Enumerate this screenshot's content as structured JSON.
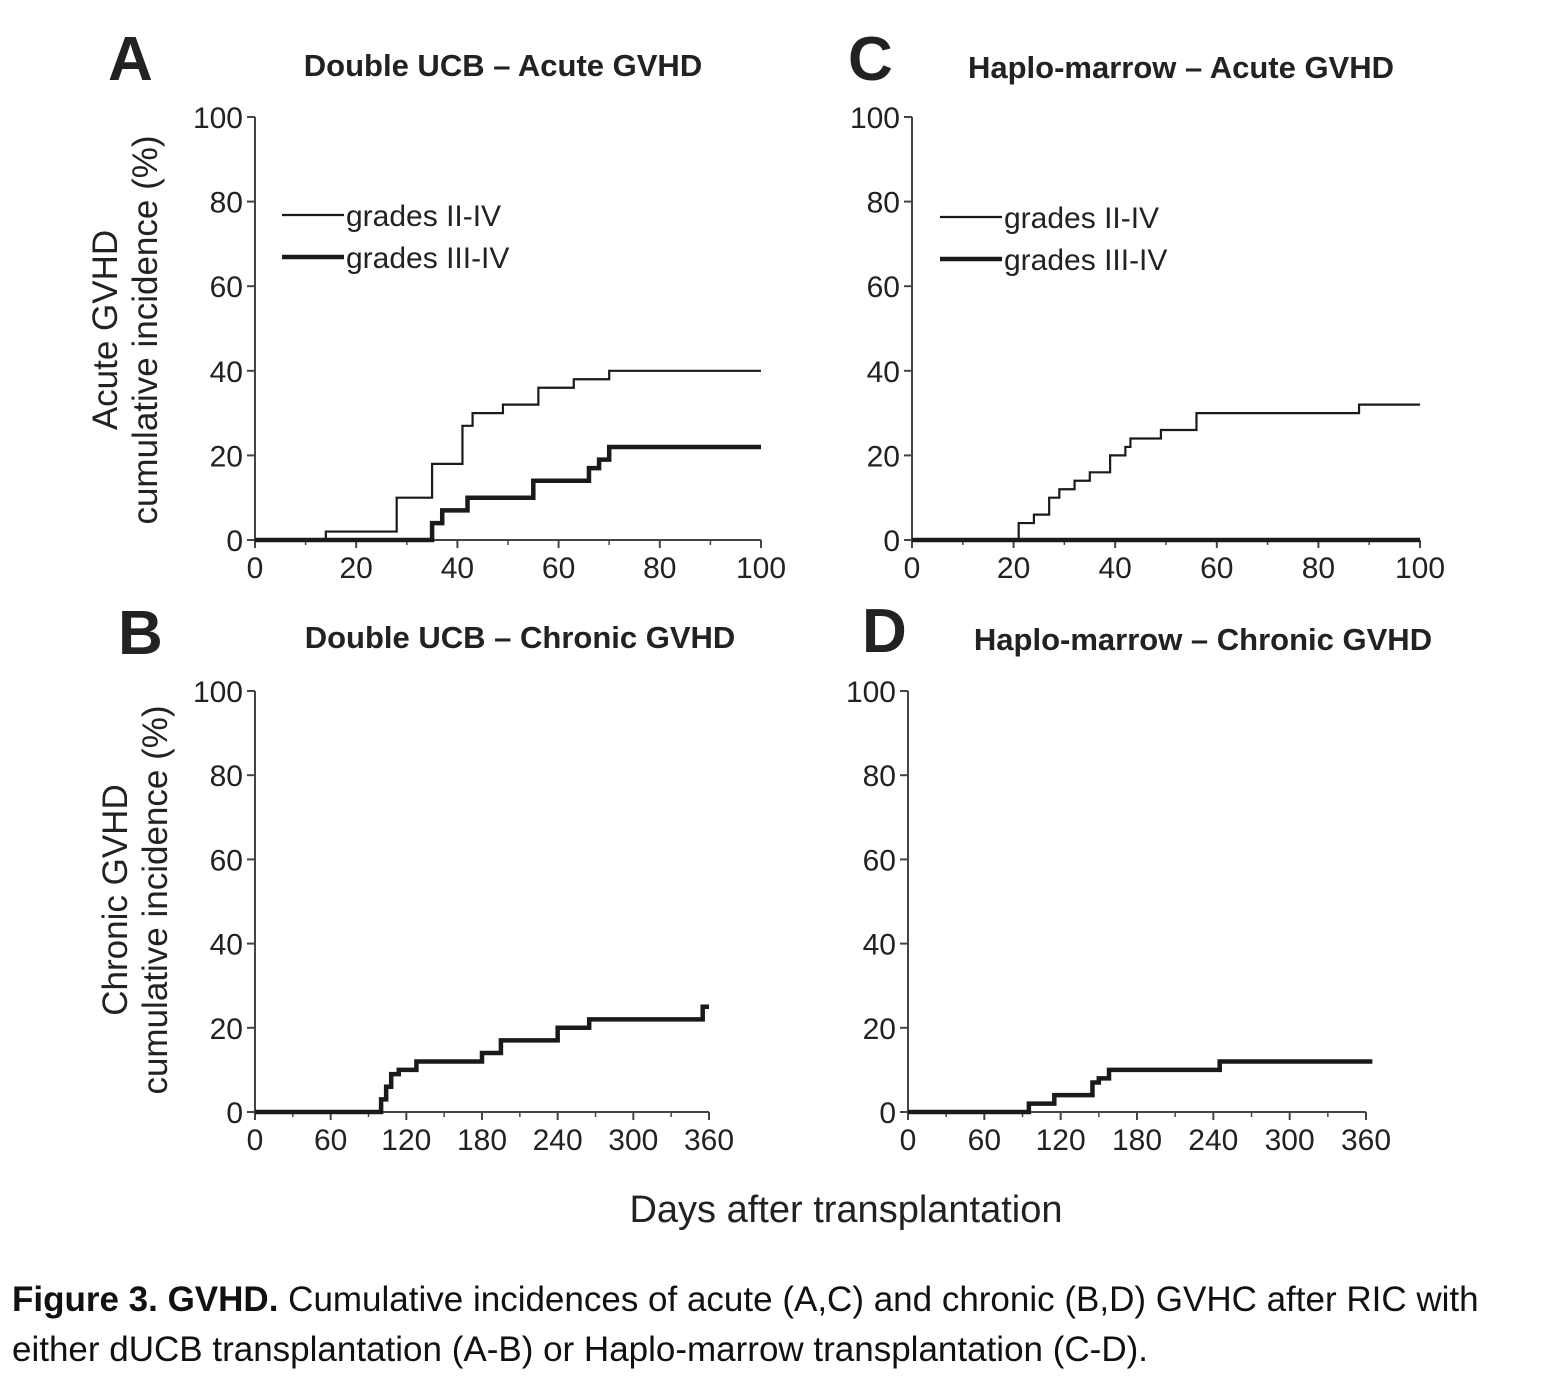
{
  "figure": {
    "ylabel_acute": [
      "Acute GVHD",
      "cumulative incidence (%)"
    ],
    "ylabel_chronic": [
      "Chronic GVHD",
      "cumulative incidence (%)"
    ],
    "xlabel": "Days after transplantation"
  },
  "caption": {
    "bold": "Figure 3. GVHD.",
    "text": " Cumulative incidences of acute (A,C) and chronic (B,D) GVHC after RIC with either dUCB transplantation (A-B) or Haplo-marrow transplantation (C-D)."
  },
  "chart_data": [
    {
      "id": "A",
      "letter": "A",
      "type": "line",
      "step": true,
      "title": "Double UCB – Acute GVHD",
      "xlim": [
        0,
        100
      ],
      "ylim": [
        0,
        100
      ],
      "xticks": [
        0,
        20,
        40,
        60,
        80,
        100
      ],
      "yticks": [
        0,
        20,
        40,
        60,
        80,
        100
      ],
      "legend": "top-left",
      "series": [
        {
          "name": "grades II-IV",
          "weight": "thin",
          "x": [
            0,
            14,
            28,
            35,
            41,
            43,
            49,
            56,
            63,
            70,
            100
          ],
          "y": [
            0,
            2,
            10,
            18,
            27,
            30,
            32,
            36,
            38,
            40,
            40
          ]
        },
        {
          "name": "grades III-IV",
          "weight": "thick",
          "x": [
            0,
            35,
            37,
            42,
            55,
            66,
            68,
            70,
            100
          ],
          "y": [
            0,
            4,
            7,
            10,
            14,
            17,
            19,
            22,
            22
          ]
        }
      ]
    },
    {
      "id": "C",
      "letter": "C",
      "type": "line",
      "step": true,
      "title": "Haplo-marrow – Acute GVHD",
      "xlim": [
        0,
        100
      ],
      "ylim": [
        0,
        100
      ],
      "xticks": [
        0,
        20,
        40,
        60,
        80,
        100
      ],
      "yticks": [
        0,
        20,
        40,
        60,
        80,
        100
      ],
      "legend": "top-left",
      "series": [
        {
          "name": "grades II-IV",
          "weight": "thin",
          "x": [
            0,
            21,
            24,
            27,
            29,
            32,
            35,
            39,
            42,
            43,
            49,
            56,
            88,
            100
          ],
          "y": [
            0,
            4,
            6,
            10,
            12,
            14,
            16,
            20,
            22,
            24,
            26,
            30,
            32,
            32
          ]
        },
        {
          "name": "grades III-IV",
          "weight": "thick",
          "x": [
            0,
            100
          ],
          "y": [
            0,
            0
          ]
        }
      ]
    },
    {
      "id": "B",
      "letter": "B",
      "type": "line",
      "step": true,
      "title": "Double UCB – Chronic GVHD",
      "xlim": [
        0,
        360
      ],
      "ylim": [
        0,
        100
      ],
      "xticks": [
        0,
        60,
        120,
        180,
        240,
        300,
        360
      ],
      "yticks": [
        0,
        20,
        40,
        60,
        80,
        100
      ],
      "series": [
        {
          "name": "",
          "weight": "thick",
          "x": [
            0,
            100,
            104,
            108,
            114,
            128,
            180,
            195,
            240,
            265,
            355,
            360
          ],
          "y": [
            0,
            3,
            6,
            9,
            10,
            12,
            14,
            17,
            20,
            22,
            25,
            25
          ]
        }
      ]
    },
    {
      "id": "D",
      "letter": "D",
      "type": "line",
      "step": true,
      "title": "Haplo-marrow – Chronic GVHD",
      "xlim": [
        0,
        360
      ],
      "ylim": [
        0,
        100
      ],
      "xticks": [
        0,
        60,
        120,
        180,
        240,
        300,
        360
      ],
      "yticks": [
        0,
        20,
        40,
        60,
        80,
        100
      ],
      "series": [
        {
          "name": "",
          "weight": "thick",
          "x": [
            0,
            95,
            115,
            145,
            150,
            158,
            245,
            365
          ],
          "y": [
            0,
            2,
            4,
            7,
            8,
            10,
            12,
            12
          ]
        }
      ]
    }
  ]
}
